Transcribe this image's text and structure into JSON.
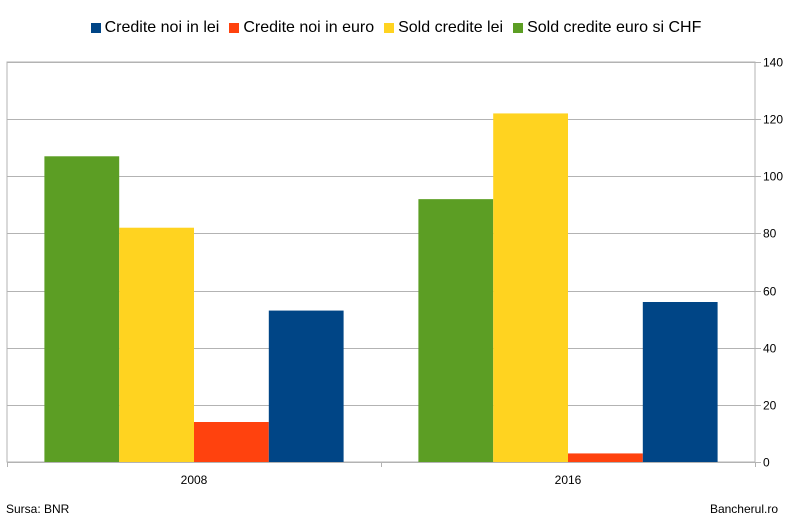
{
  "chart_data": {
    "type": "bar",
    "categories": [
      "2008",
      "2016"
    ],
    "series": [
      {
        "name": "Sold credite euro si CHF",
        "color": "#5c9e24",
        "values": [
          107,
          92
        ]
      },
      {
        "name": "Sold credite lei",
        "color": "#ffd320",
        "values": [
          82,
          122
        ]
      },
      {
        "name": "Credite noi in euro",
        "color": "#ff420e",
        "values": [
          14,
          3
        ]
      },
      {
        "name": "Credite noi in lei",
        "color": "#004586",
        "values": [
          53,
          56
        ]
      }
    ],
    "legend": [
      {
        "name": "Credite noi in lei",
        "color": "#004586"
      },
      {
        "name": "Credite noi in euro",
        "color": "#ff420e"
      },
      {
        "name": "Sold credite lei",
        "color": "#ffd320"
      },
      {
        "name": "Sold credite euro si CHF",
        "color": "#5c9e24"
      }
    ],
    "yticks": [
      "0",
      "20",
      "40",
      "60",
      "80",
      "100",
      "120",
      "140"
    ],
    "ylim": [
      0,
      140
    ],
    "legend_position": "top",
    "y_axis_side": "right",
    "grid": true
  },
  "footer": {
    "source": "Sursa: BNR",
    "site": "Bancherul.ro"
  }
}
